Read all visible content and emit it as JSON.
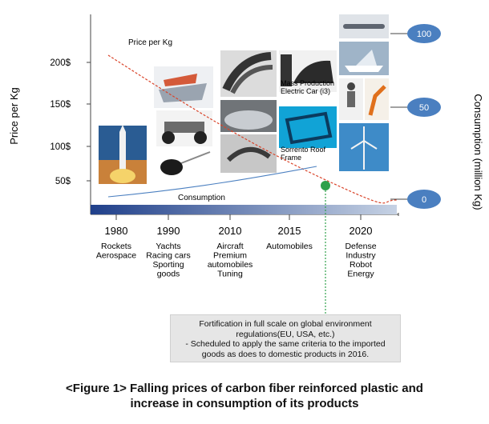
{
  "chart_data": {
    "type": "line",
    "y_left_label": "Price per Kg",
    "y_right_label": "Consumption (million Kg)",
    "y_left_ticks": [
      "200$",
      "150$",
      "100$",
      "50$"
    ],
    "y_right_ticks": [
      "100",
      "50",
      "0"
    ],
    "series": [
      {
        "name": "Price per Kg",
        "color": "#d9442a",
        "style": "dashed"
      },
      {
        "name": "Consumption",
        "color": "#4a7fc0",
        "style": "solid"
      }
    ],
    "eras": [
      {
        "year": "1980",
        "apps": [
          "Rockets",
          "Aerospace"
        ]
      },
      {
        "year": "1990",
        "apps": [
          "Yachts",
          "Racing cars",
          "Sporting",
          "goods"
        ]
      },
      {
        "year": "2010",
        "apps": [
          "Aircraft",
          "Premium",
          "automobiles",
          "Tuning"
        ]
      },
      {
        "year": "2015",
        "apps": [
          "Automobiles"
        ]
      },
      {
        "year": "2020",
        "apps": [
          "Defense",
          "Industry",
          "Robot",
          "Energy"
        ]
      }
    ],
    "annotations": {
      "mass_production": [
        "Mass Production",
        "Electric Car (i3)"
      ],
      "sorrento": [
        "Sorrento Roof",
        "Frame"
      ]
    },
    "marker_color": "#2ea04a"
  },
  "note": {
    "lines": [
      "Fortification in full scale on global environment",
      "regulations(EU, USA, etc.)",
      "- Scheduled to apply the same criteria to the imported",
      "goods as does to domestic products in 2016."
    ]
  },
  "caption": {
    "line1": "<Figure 1> Falling prices of carbon fiber reinforced plastic and",
    "line2": "increase in consumption of its products"
  }
}
